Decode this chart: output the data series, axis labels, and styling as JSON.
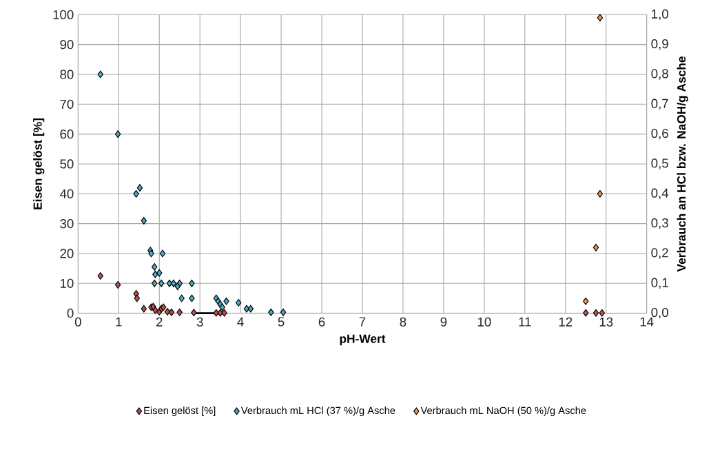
{
  "chart_data": {
    "type": "scatter",
    "xlabel": "pH-Wert",
    "ylabel": "Eisen gelöst [%]",
    "y2label": "Verbrauch an HCl bzw. NaOH/g Asche",
    "xlim": [
      0,
      14
    ],
    "xticks": [
      0,
      1,
      2,
      3,
      4,
      5,
      6,
      7,
      8,
      9,
      10,
      11,
      12,
      13,
      14
    ],
    "ylim": [
      0,
      100
    ],
    "yticks": [
      0,
      10,
      20,
      30,
      40,
      50,
      60,
      70,
      80,
      90,
      100
    ],
    "y2lim": [
      0,
      1
    ],
    "y2ticks": [
      {
        "value": 0,
        "label": "0,0"
      },
      {
        "value": 0.1,
        "label": "0,1"
      },
      {
        "value": 0.2,
        "label": "0,2"
      },
      {
        "value": 0.3,
        "label": "0,3"
      },
      {
        "value": 0.4,
        "label": "0,4"
      },
      {
        "value": 0.5,
        "label": "0,5"
      },
      {
        "value": 0.6,
        "label": "0,6"
      },
      {
        "value": 0.7,
        "label": "0,7"
      },
      {
        "value": 0.8,
        "label": "0,8"
      },
      {
        "value": 0.9,
        "label": "0,9"
      },
      {
        "value": 1,
        "label": "1,0"
      }
    ],
    "grid": true,
    "legend": "bottom",
    "marker": "diamond",
    "series": [
      {
        "name": "Eisen gelöst [%]",
        "color": "#c0504d",
        "x": [
          0.55,
          0.98,
          1.43,
          1.45,
          1.62,
          1.8,
          1.85,
          1.9,
          2.0,
          2.05,
          2.1,
          2.2,
          2.3,
          2.5,
          2.85,
          3.4,
          3.5,
          3.6,
          12.5,
          12.75,
          12.9
        ],
        "values": [
          12.5,
          9.5,
          6.5,
          5,
          1.5,
          2,
          2.2,
          1,
          0.5,
          1.5,
          2,
          0.5,
          0.3,
          0.3,
          0.2,
          0.1,
          0.1,
          0.1,
          0.1,
          0.1,
          0.1
        ]
      },
      {
        "name": "Verbrauch mL HCl (37 %)/g Asche",
        "color": "#4bacc6",
        "axis": "y2",
        "x": [
          0.55,
          0.98,
          1.43,
          1.52,
          1.62,
          1.78,
          1.8,
          2.08,
          1.88,
          1.9,
          2.0,
          1.88,
          2.05,
          2.25,
          2.35,
          2.5,
          2.8,
          2.45,
          2.55,
          2.8,
          3.4,
          3.45,
          3.5,
          3.65,
          3.55,
          3.95,
          4.15,
          4.25,
          4.75,
          5.05
        ],
        "values": [
          0.8,
          0.6,
          0.4,
          0.42,
          0.31,
          0.21,
          0.2,
          0.2,
          0.155,
          0.13,
          0.135,
          0.1,
          0.1,
          0.1,
          0.1,
          0.1,
          0.1,
          0.09,
          0.05,
          0.05,
          0.05,
          0.04,
          0.03,
          0.04,
          0.02,
          0.035,
          0.015,
          0.015,
          0.003,
          0.003
        ]
      },
      {
        "name": "Verbrauch mL NaOH (50 %)/g Asche",
        "color": "#f79646",
        "axis": "y2",
        "x": [
          12.5,
          12.75,
          12.85,
          12.85
        ],
        "values": [
          0.04,
          0.22,
          0.4,
          0.99
        ]
      },
      {
        "type": "line",
        "marker": "none",
        "color": "#000000",
        "x": [
          2.85,
          3.4
        ],
        "values": [
          0,
          0
        ]
      }
    ]
  }
}
